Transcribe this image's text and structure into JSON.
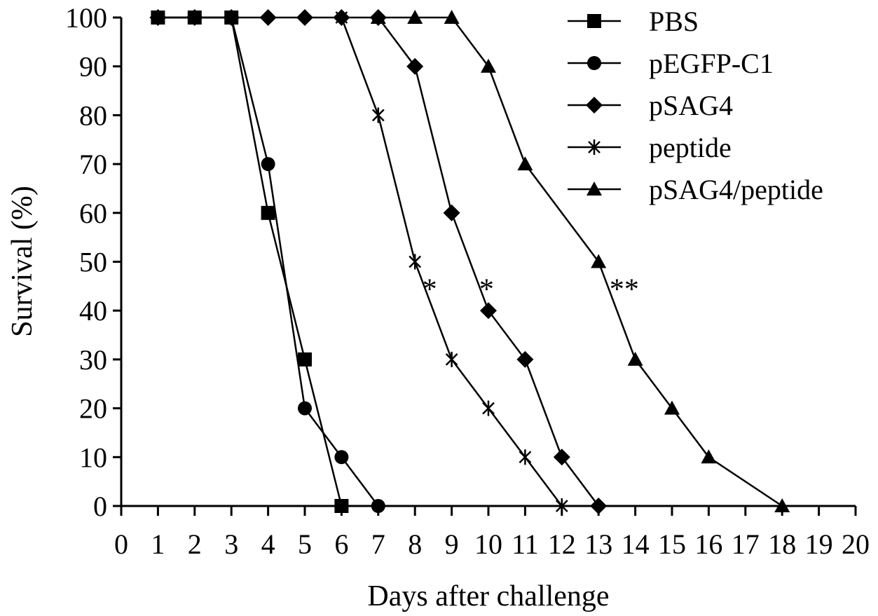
{
  "chart_data": {
    "type": "line",
    "xlabel": "Days after challenge",
    "ylabel": "Survival (%)",
    "xlim": [
      0,
      20
    ],
    "ylim": [
      0,
      100
    ],
    "x_ticks": [
      "0",
      "1",
      "2",
      "3",
      "4",
      "5",
      "6",
      "7",
      "8",
      "9",
      "10",
      "11",
      "12",
      "13",
      "14",
      "15",
      "16",
      "17",
      "18",
      "19",
      "20"
    ],
    "y_ticks": [
      "0",
      "10",
      "20",
      "30",
      "40",
      "50",
      "60",
      "70",
      "80",
      "90",
      "100"
    ],
    "grid": false,
    "legend_position": "top-right",
    "series": [
      {
        "name": "PBS",
        "marker": "square",
        "x": [
          1,
          2,
          3,
          4,
          5,
          6
        ],
        "y": [
          100,
          100,
          100,
          60,
          30,
          0
        ]
      },
      {
        "name": "pEGFP-C1",
        "marker": "circle",
        "x": [
          1,
          2,
          3,
          4,
          5,
          6,
          7
        ],
        "y": [
          100,
          100,
          100,
          70,
          20,
          10,
          0
        ]
      },
      {
        "name": "pSAG4",
        "marker": "diamond",
        "x": [
          1,
          2,
          3,
          4,
          5,
          6,
          7,
          8,
          9,
          10,
          11,
          12,
          13
        ],
        "y": [
          100,
          100,
          100,
          100,
          100,
          100,
          100,
          90,
          60,
          40,
          30,
          10,
          0
        ]
      },
      {
        "name": "peptide",
        "marker": "asterisk",
        "x": [
          6,
          7,
          8,
          9,
          10,
          11,
          12
        ],
        "y": [
          100,
          80,
          50,
          30,
          20,
          10,
          0
        ]
      },
      {
        "name": "pSAG4/peptide",
        "marker": "triangle",
        "x": [
          7,
          8,
          9,
          10,
          11,
          13,
          14,
          15,
          16,
          18
        ],
        "y": [
          100,
          100,
          100,
          90,
          70,
          50,
          30,
          20,
          10,
          0
        ]
      }
    ],
    "annotations": [
      {
        "text": "*",
        "x": 8.4,
        "y": 45
      },
      {
        "text": "*",
        "x": 9.95,
        "y": 45
      },
      {
        "text": "**",
        "x": 13.7,
        "y": 45
      }
    ]
  }
}
